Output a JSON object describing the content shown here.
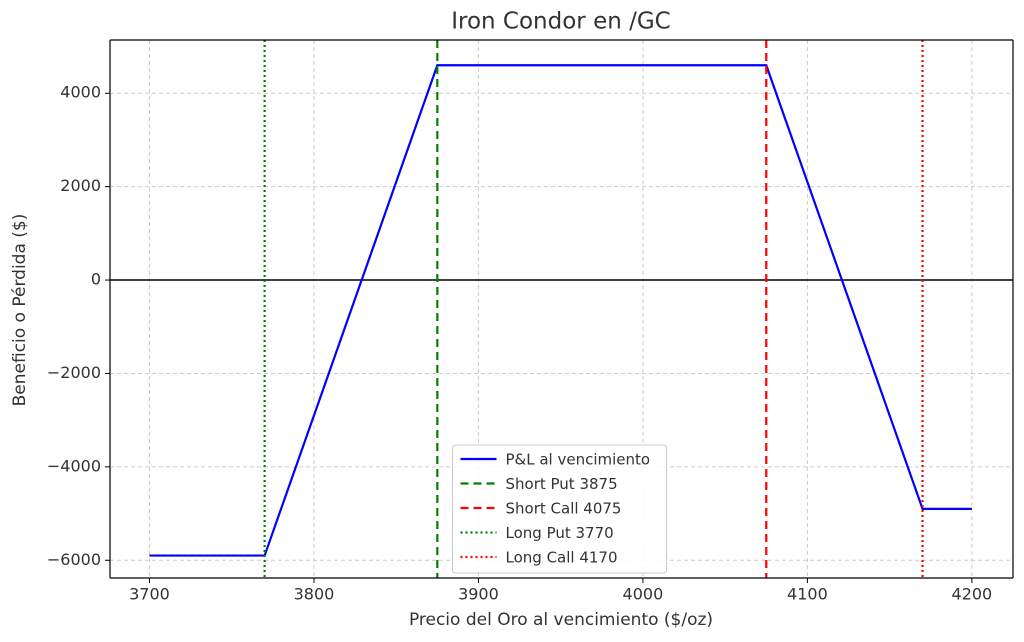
{
  "chart_data": {
    "type": "line",
    "title": "Iron Condor en /GC",
    "x_label": "Precio del Oro al vencimiento ($/oz)",
    "y_label": "Beneficio o Pérdida ($)",
    "xlim": [
      3676,
      4225
    ],
    "ylim": [
      -6380,
      5140
    ],
    "xticks": [
      3700,
      3800,
      3900,
      4000,
      4100,
      4200
    ],
    "yticks": [
      {
        "value": -6000,
        "label": "−6000"
      },
      {
        "value": -4000,
        "label": "−4000"
      },
      {
        "value": -2000,
        "label": "−2000"
      },
      0,
      2000,
      4000
    ],
    "grid": true,
    "hline": 0,
    "legend": "lower center",
    "series": [
      {
        "name": "P&L al vencimiento",
        "color": "#0000ff",
        "style": "solid",
        "x": [
          3700,
          3770,
          3875,
          4075,
          4170,
          4200
        ],
        "values": [
          -5900,
          -5900,
          4600,
          4600,
          -4900,
          -4900
        ]
      },
      {
        "name": "Short Put 3875",
        "color": "#008000",
        "style": "dashed",
        "x": 3875
      },
      {
        "name": "Short Call 4075",
        "color": "#ff0000",
        "style": "dashed",
        "x": 4075
      },
      {
        "name": "Long Put 3770",
        "color": "#008000",
        "style": "dotted",
        "x": 3770
      },
      {
        "name": "Long Call 4170",
        "color": "#ff0000",
        "style": "dotted",
        "x": 4170
      }
    ]
  }
}
